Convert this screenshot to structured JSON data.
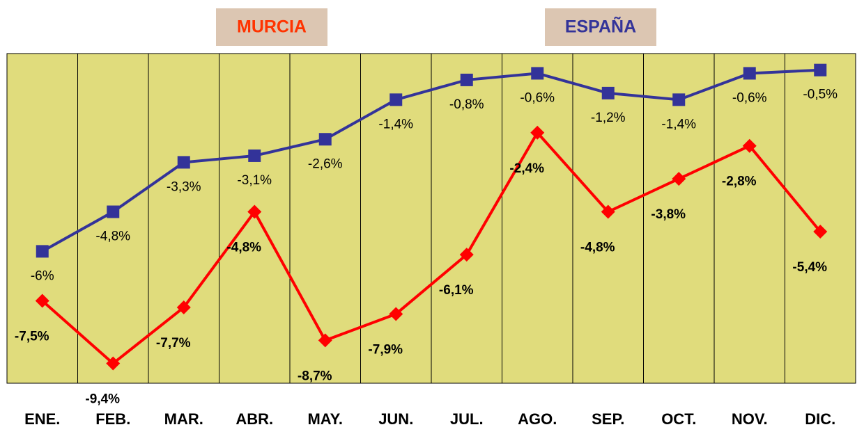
{
  "chart_data": {
    "type": "line",
    "categories": [
      "ENE.",
      "FEB.",
      "MAR.",
      "ABR.",
      "MAY.",
      "JUN.",
      "JUL.",
      "AGO.",
      "SEP.",
      "OCT.",
      "NOV.",
      "DIC."
    ],
    "series": [
      {
        "name": "MURCIA",
        "color": "#ff0000",
        "values": [
          -7.5,
          -9.4,
          -7.7,
          -4.8,
          -8.7,
          -7.9,
          -6.1,
          -2.4,
          -4.8,
          -3.8,
          -2.8,
          -5.4
        ],
        "value_labels": [
          "-7,5%",
          "-9,4%",
          "-7,7%",
          "-4,8%",
          "-8,7%",
          "-7,9%",
          "-6,1%",
          "-2,4%",
          "-4,8%",
          "-3,8%",
          "-2,8%",
          "-5,4%"
        ]
      },
      {
        "name": "ESPAÑA",
        "color": "#333399",
        "values": [
          -6,
          -4.8,
          -3.3,
          -3.1,
          -2.6,
          -1.4,
          -0.8,
          -0.6,
          -1.2,
          -1.4,
          -0.6,
          -0.5
        ],
        "value_labels": [
          "-6%",
          "-4,8%",
          "-3,3%",
          "-3,1%",
          "-2,6%",
          "-1,4%",
          "-0,8%",
          "-0,6%",
          "-1,2%",
          "-1,4%",
          "-0,6%",
          "-0,5%"
        ]
      }
    ],
    "ylim": [
      -10,
      0
    ],
    "legend_colors": {
      "box": "#dcc6b2",
      "MURCIA": "#ff3300",
      "ESPAÑA": "#333399"
    },
    "plot_background": "#e0dc7c"
  }
}
